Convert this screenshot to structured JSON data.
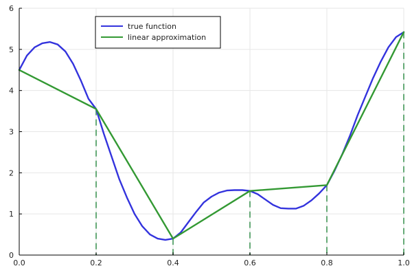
{
  "chart_data": {
    "type": "line",
    "title": "",
    "xlabel": "",
    "ylabel": "",
    "xlim": [
      0,
      1
    ],
    "ylim": [
      0,
      6
    ],
    "xticks": [
      "0.0",
      "0.2",
      "0.4",
      "0.6",
      "0.8",
      "1.0"
    ],
    "yticks": [
      "0",
      "1",
      "2",
      "3",
      "4",
      "5",
      "6"
    ],
    "grid": true,
    "legend_position": "top-left",
    "series": [
      {
        "name": "true function",
        "color": "#3333dd",
        "style": "solid",
        "x": [
          0.0,
          0.02,
          0.04,
          0.06,
          0.08,
          0.1,
          0.12,
          0.14,
          0.16,
          0.18,
          0.2,
          0.22,
          0.24,
          0.26,
          0.28,
          0.3,
          0.32,
          0.34,
          0.36,
          0.38,
          0.4,
          0.42,
          0.44,
          0.46,
          0.48,
          0.5,
          0.52,
          0.54,
          0.56,
          0.58,
          0.6,
          0.62,
          0.64,
          0.66,
          0.68,
          0.7,
          0.72,
          0.74,
          0.76,
          0.78,
          0.8,
          0.82,
          0.84,
          0.86,
          0.88,
          0.9,
          0.92,
          0.94,
          0.96,
          0.98,
          1.0
        ],
        "y": [
          4.5,
          4.85,
          5.05,
          5.15,
          5.18,
          5.12,
          4.95,
          4.65,
          4.25,
          3.8,
          3.55,
          2.95,
          2.4,
          1.85,
          1.4,
          1.0,
          0.7,
          0.5,
          0.4,
          0.37,
          0.4,
          0.55,
          0.8,
          1.05,
          1.28,
          1.42,
          1.52,
          1.57,
          1.58,
          1.58,
          1.56,
          1.48,
          1.35,
          1.22,
          1.14,
          1.13,
          1.13,
          1.2,
          1.33,
          1.5,
          1.7,
          2.05,
          2.45,
          2.9,
          3.4,
          3.85,
          4.3,
          4.7,
          5.05,
          5.3,
          5.42
        ]
      },
      {
        "name": "linear approximation",
        "color": "#339933",
        "style": "solid",
        "x": [
          0.0,
          0.2,
          0.4,
          0.6,
          0.8,
          1.0
        ],
        "y": [
          4.5,
          3.55,
          0.4,
          1.56,
          1.7,
          5.42
        ]
      }
    ],
    "vlines": {
      "color": "#66aa77",
      "style": "dashed",
      "x": [
        0.2,
        0.4,
        0.6,
        0.8,
        1.0
      ],
      "y": [
        3.55,
        0.4,
        1.56,
        1.7,
        5.42
      ]
    }
  }
}
